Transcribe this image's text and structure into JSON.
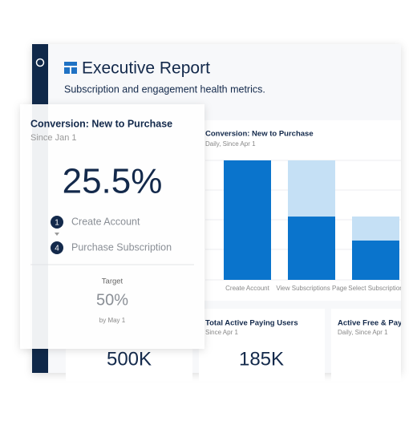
{
  "header": {
    "title": "Executive Report",
    "subtitle": "Subscription and engagement health metrics."
  },
  "chart_data": {
    "type": "bar",
    "stacked": true,
    "title": "Conversion: New to Purchase",
    "subtitle": "Daily, Since Apr 1",
    "categories": [
      "Create Account",
      "View Subscriptions Page",
      "Select Subscription"
    ],
    "ylim": [
      0,
      100
    ],
    "series": [
      {
        "color": "#0a74cc",
        "values": [
          100,
          53,
          33
        ]
      },
      {
        "color": "#c5e0f5",
        "values": [
          null,
          47,
          20
        ]
      }
    ]
  },
  "cards": [
    {
      "value": "500K"
    },
    {
      "title": "Total Active Paying Users",
      "subtitle": "Since Apr 1",
      "value": "185K"
    },
    {
      "title": "Active Free & Paying",
      "subtitle": "Daily, Since Apr 1"
    }
  ],
  "overlay": {
    "title": "Conversion: New to Purchase",
    "subtitle": "Since Jan 1",
    "value": "25.5%",
    "steps": [
      {
        "number": "1",
        "label": "Create Account"
      },
      {
        "number": "4",
        "label": "Purchase Subscription"
      }
    ],
    "target": {
      "label": "Target",
      "value": "50%",
      "date": "by May 1"
    }
  }
}
